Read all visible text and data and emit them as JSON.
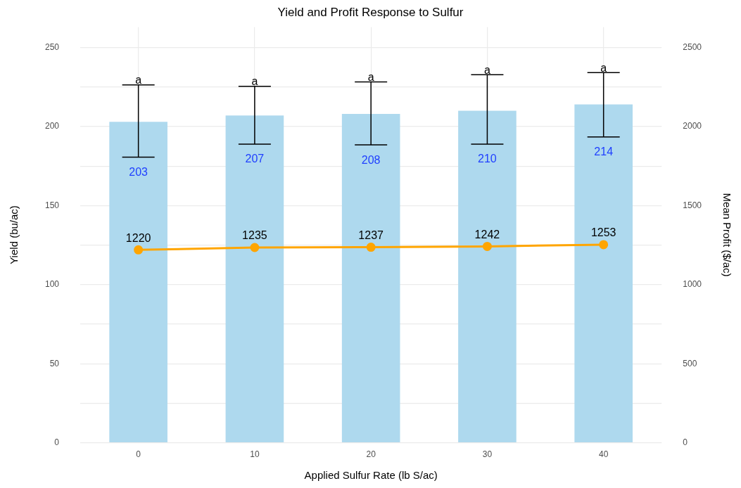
{
  "chart_data": {
    "type": "bar",
    "title": "Yield and Profit Response to Sulfur",
    "xlabel": "Applied Sulfur Rate (lb S/ac)",
    "ylabel": "Yield (bu/ac)",
    "y2label": "Mean Profit ($/ac)",
    "categories": [
      "0",
      "10",
      "20",
      "30",
      "40"
    ],
    "series": [
      {
        "color": "#aed9ee",
        "values": [
          203,
          207,
          208,
          210,
          214
        ],
        "errors": [
          [
            180.7,
            226.4
          ],
          [
            188.9,
            225.5
          ],
          [
            188.4,
            228.3
          ],
          [
            188.9,
            232.8
          ],
          [
            193.4,
            234.1
          ]
        ]
      },
      {
        "type": "line",
        "axis": "y2",
        "color": "#ffa500",
        "values": [
          1220,
          1235,
          1237,
          1242,
          1253
        ]
      }
    ],
    "ylim": [
      0,
      263
    ],
    "yticks": [
      0,
      {
        "value": 25,
        "label": null
      },
      50,
      {
        "value": 75,
        "label": null
      },
      100,
      {
        "value": 125,
        "label": null
      },
      150,
      {
        "value": 175,
        "label": null
      },
      200,
      {
        "value": 225,
        "label": null
      },
      250
    ],
    "y2lim": [
      0,
      2630
    ],
    "y2ticks": [
      0,
      500,
      1000,
      1500,
      2000,
      2500
    ],
    "annotations": [
      {
        "text": "a",
        "x": "0",
        "y": 226.4
      },
      {
        "text": "a",
        "x": "10",
        "y": 225.5
      },
      {
        "text": "a",
        "x": "20",
        "y": 228.3
      },
      {
        "text": "a",
        "x": "30",
        "y": 232.8
      },
      {
        "text": "a",
        "x": "40",
        "y": 234.1
      }
    ],
    "data_labels": true,
    "grid": true,
    "legend": false,
    "marker": "circle",
    "line_style": "solid"
  }
}
